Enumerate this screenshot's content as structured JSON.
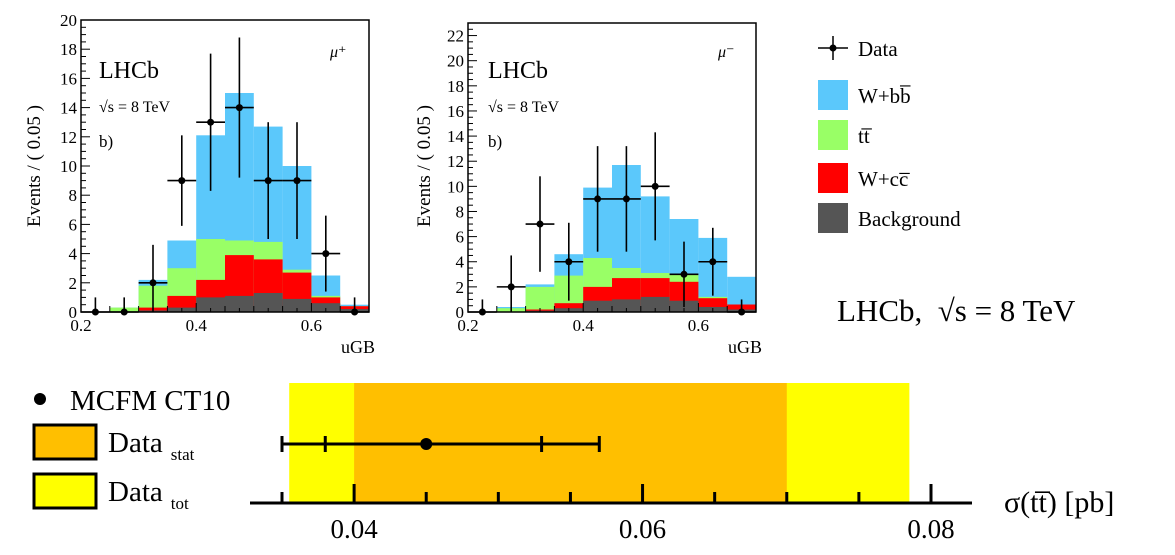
{
  "colors": {
    "wbb": "#5bc8fb",
    "tt": "#99ff66",
    "wcc": "#ff0000",
    "background": "#555555",
    "stat_band": "#ffbf00",
    "tot_band": "#ffff00",
    "frame": "#000000"
  },
  "legend": {
    "items": [
      {
        "key": "data",
        "label": "Data"
      },
      {
        "key": "wbb",
        "label": "W+bb̅"
      },
      {
        "key": "tt",
        "label": "tt̅"
      },
      {
        "key": "wcc",
        "label": "W+cc̅"
      },
      {
        "key": "bkg",
        "label": "Background"
      }
    ]
  },
  "summary": {
    "label": "LHCb,  √s = 8 TeV"
  },
  "chart_data": [
    {
      "type": "bar",
      "stacked": true,
      "panel": "mu-plus",
      "title": "",
      "experiment": "LHCb",
      "energy": "√s = 8 TeV",
      "panel_tag": "b)",
      "charge": "μ⁺",
      "xlabel": "uGB",
      "ylabel": "Events / ( 0.05 )",
      "xlim": [
        0.2,
        0.7
      ],
      "ylim": [
        0,
        20
      ],
      "xticks": [
        "0.2",
        "0.4",
        "0.6"
      ],
      "yticks": [
        "0",
        "2",
        "4",
        "6",
        "8",
        "10",
        "12",
        "14",
        "16",
        "18",
        "20"
      ],
      "bin_edges": [
        0.2,
        0.25,
        0.3,
        0.35,
        0.4,
        0.45,
        0.5,
        0.55,
        0.6,
        0.65,
        0.7
      ],
      "series": [
        {
          "name": "Background",
          "values": [
            0,
            0,
            0.1,
            0.3,
            1.0,
            1.1,
            1.3,
            0.9,
            0.6,
            0.2
          ]
        },
        {
          "name": "W+cc̅",
          "values": [
            0,
            0,
            0.2,
            0.8,
            1.2,
            2.8,
            2.3,
            1.8,
            0.4,
            0.2
          ]
        },
        {
          "name": "tt̅",
          "values": [
            0,
            0.3,
            1.5,
            1.9,
            2.8,
            1.0,
            1.2,
            0.2,
            0.1,
            0
          ]
        },
        {
          "name": "W+bb̅",
          "values": [
            0,
            0,
            0.4,
            1.9,
            7.1,
            10.1,
            7.9,
            7.1,
            1.4,
            0.1
          ]
        }
      ],
      "data_points": {
        "x": [
          0.225,
          0.275,
          0.325,
          0.375,
          0.425,
          0.475,
          0.525,
          0.575,
          0.625,
          0.675
        ],
        "y": [
          0,
          0,
          2,
          9,
          13,
          14,
          9,
          9,
          4,
          0
        ],
        "yerr": [
          1.0,
          1.0,
          2.6,
          3.1,
          4.7,
          4.8,
          4.0,
          4.0,
          2.6,
          1.0
        ]
      }
    },
    {
      "type": "bar",
      "stacked": true,
      "panel": "mu-minus",
      "title": "",
      "experiment": "LHCb",
      "energy": "√s = 8 TeV",
      "panel_tag": "b)",
      "charge": "μ⁻",
      "xlabel": "uGB",
      "ylabel": "Events / ( 0.05 )",
      "xlim": [
        0.2,
        0.7
      ],
      "ylim": [
        0,
        23
      ],
      "xticks": [
        "0.2",
        "0.4",
        "0.6"
      ],
      "yticks": [
        "0",
        "2",
        "4",
        "6",
        "8",
        "10",
        "12",
        "14",
        "16",
        "18",
        "20",
        "22"
      ],
      "bin_edges": [
        0.2,
        0.25,
        0.3,
        0.35,
        0.4,
        0.45,
        0.5,
        0.55,
        0.6,
        0.65,
        0.7
      ],
      "series": [
        {
          "name": "Background",
          "values": [
            0,
            0,
            0.1,
            0.3,
            0.9,
            1.0,
            1.2,
            0.9,
            0.4,
            0.2
          ]
        },
        {
          "name": "W+cc̅",
          "values": [
            0,
            0,
            0.1,
            0.4,
            1.1,
            1.7,
            1.5,
            1.5,
            0.7,
            0.4
          ]
        },
        {
          "name": "tt̅",
          "values": [
            0,
            0.3,
            1.8,
            2.2,
            2.3,
            0.8,
            0.4,
            0.6,
            0.1,
            0
          ]
        },
        {
          "name": "W+bb̅",
          "values": [
            0,
            0.1,
            0.2,
            1.7,
            5.6,
            8.2,
            6.1,
            4.4,
            4.7,
            2.2
          ]
        }
      ],
      "data_points": {
        "x": [
          0.225,
          0.275,
          0.325,
          0.375,
          0.425,
          0.475,
          0.525,
          0.575,
          0.625,
          0.675
        ],
        "y": [
          0,
          2,
          7,
          4,
          9,
          9,
          10,
          3,
          4,
          0
        ],
        "yerr": [
          1.0,
          2.5,
          3.8,
          3.1,
          4.2,
          4.2,
          4.3,
          2.6,
          2.7,
          1.0
        ]
      }
    },
    {
      "type": "scatter",
      "panel": "cross-section",
      "title": "",
      "xlabel": "σ(tt̅) [pb]",
      "xlim": [
        0.034,
        0.08
      ],
      "xticks": [
        "0.04",
        "0.06",
        "0.08"
      ],
      "minor_ticks": [
        0.035,
        0.045,
        0.05,
        0.055,
        0.065,
        0.07,
        0.075
      ],
      "theory": {
        "label": "MCFM CT10",
        "value": 0.045,
        "err_inner": [
          0.038,
          0.053
        ],
        "err_outer": [
          0.035,
          0.057
        ]
      },
      "data_stat": {
        "label": "Data",
        "sub": "stat",
        "range": [
          0.04,
          0.07
        ]
      },
      "data_tot": {
        "label": "Data",
        "sub": "tot",
        "range": [
          0.0355,
          0.0785
        ]
      }
    }
  ]
}
